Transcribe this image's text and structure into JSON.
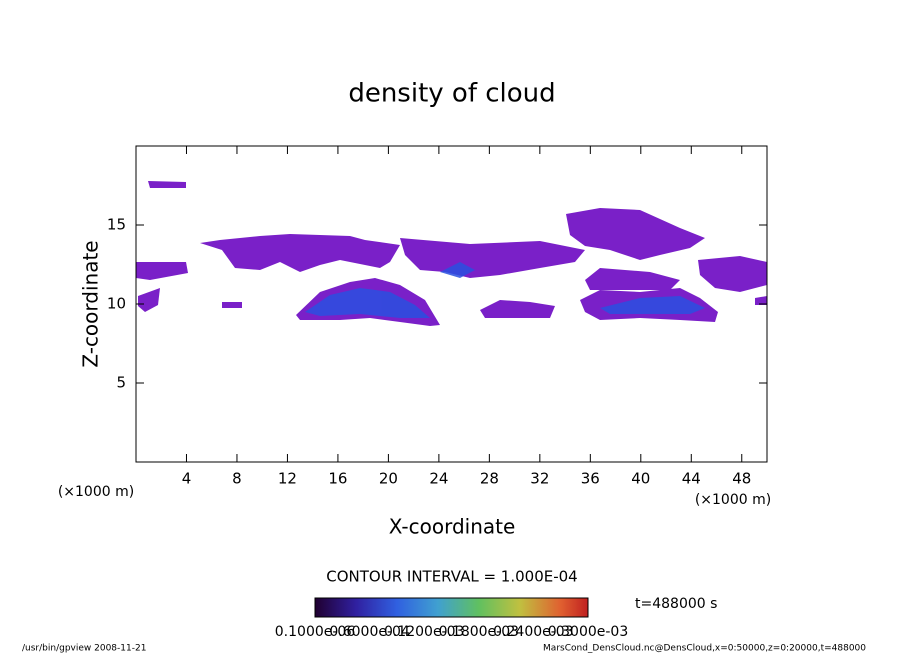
{
  "chart_data": {
    "type": "contour",
    "title": "density of cloud",
    "x_label": "X-coordinate",
    "y_label": "Z-coordinate",
    "x_unit": "(×1000 m)",
    "x_unit_right": "(×1000 m)",
    "xlim": [
      0,
      50
    ],
    "ylim": [
      0,
      20
    ],
    "xticks": [
      4,
      8,
      12,
      16,
      20,
      24,
      28,
      32,
      36,
      40,
      44,
      48
    ],
    "yticks": [
      5,
      10,
      15
    ],
    "contour_interval": "CONTOUR INTERVAL = 1.000E-04",
    "time_label": "t=488000 s",
    "colorbar_labels": [
      "0.1000e-06",
      "0.6000e-04",
      "0.1200e-03",
      "0.1800e-03",
      "0.2400e-03",
      "0.3000e-03"
    ],
    "footer_left": "/usr/bin/gpview   2008-11-21",
    "footer_right": "MarsCond_DensCloud.nc@DensCloud,x=0:50000,z=0:20000,t=488000"
  }
}
